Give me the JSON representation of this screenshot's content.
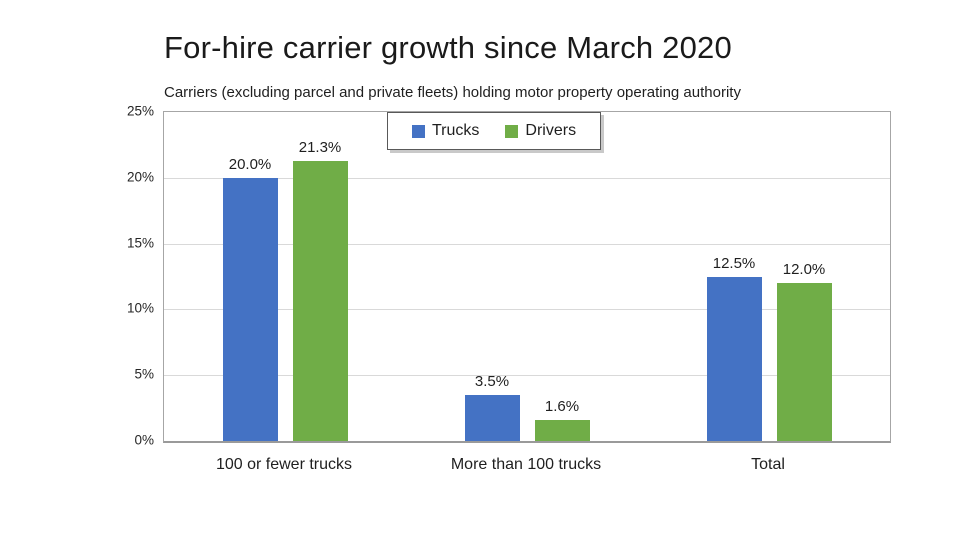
{
  "chart": {
    "title": "For-hire carrier growth since March 2020",
    "subtitle": "Carriers (excluding parcel and private fleets) holding motor property operating authority"
  },
  "chart_data": {
    "type": "bar",
    "title": "For-hire carrier growth since March 2020",
    "subtitle": "Carriers (excluding parcel and private fleets) holding motor property operating authority",
    "categories": [
      "100 or fewer trucks",
      "More than 100 trucks",
      "Total"
    ],
    "series": [
      {
        "name": "Trucks",
        "color": "#4472C4",
        "values": [
          20.0,
          3.5,
          12.5
        ],
        "labels": [
          "20.0%",
          "3.5%",
          "12.5%"
        ]
      },
      {
        "name": "Drivers",
        "color": "#70AD47",
        "values": [
          21.3,
          1.6,
          12.0
        ],
        "labels": [
          "21.3%",
          "1.6%",
          "12.0%"
        ]
      }
    ],
    "xlabel": "",
    "ylabel": "",
    "ylim": [
      0,
      25
    ],
    "y_ticks": [
      "25%",
      "20%",
      "15%",
      "10%",
      "5%",
      "0%"
    ],
    "y_tick_values": [
      25,
      20,
      15,
      10,
      5,
      0
    ],
    "grid": true,
    "legend_position": "top-center",
    "gridline_color": "#d9d9d9",
    "axis_border_color": "#a6a6a6"
  }
}
